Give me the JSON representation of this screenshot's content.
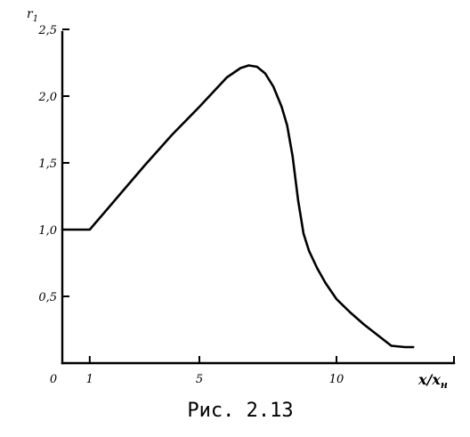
{
  "chart_data": {
    "type": "line",
    "title": "",
    "ylabel_main": "r",
    "ylabel_sub": "1",
    "xlabel_main": "x/x",
    "xlabel_sub": "н",
    "xlim": [
      0,
      14
    ],
    "ylim": [
      0,
      2.5
    ],
    "x_ticks": [
      {
        "value": 0,
        "label": "0"
      },
      {
        "value": 1,
        "label": "1"
      },
      {
        "value": 5,
        "label": "5"
      },
      {
        "value": 10,
        "label": "10"
      }
    ],
    "y_ticks": [
      {
        "value": 0.5,
        "label": "0,5"
      },
      {
        "value": 1.0,
        "label": "1,0"
      },
      {
        "value": 1.5,
        "label": "1,5"
      },
      {
        "value": 2.0,
        "label": "2,0"
      },
      {
        "value": 2.5,
        "label": "2,5"
      }
    ],
    "series": [
      {
        "x": [
          0,
          1.0,
          2.0,
          3.0,
          4.0,
          5.0,
          5.5,
          6.0,
          6.5,
          6.8,
          7.1,
          7.4,
          7.7,
          8.0,
          8.2,
          8.4,
          8.6,
          8.8,
          9.0,
          9.3,
          9.6,
          10.0,
          10.5,
          11.0,
          11.5,
          12.0,
          12.5,
          12.8
        ],
        "y": [
          1.0,
          1.0,
          1.24,
          1.48,
          1.71,
          1.92,
          2.03,
          2.14,
          2.21,
          2.23,
          2.22,
          2.17,
          2.07,
          1.92,
          1.78,
          1.55,
          1.22,
          0.97,
          0.84,
          0.71,
          0.6,
          0.48,
          0.38,
          0.29,
          0.21,
          0.13,
          0.12,
          0.12
        ]
      }
    ]
  },
  "caption": "Рис. 2.13"
}
